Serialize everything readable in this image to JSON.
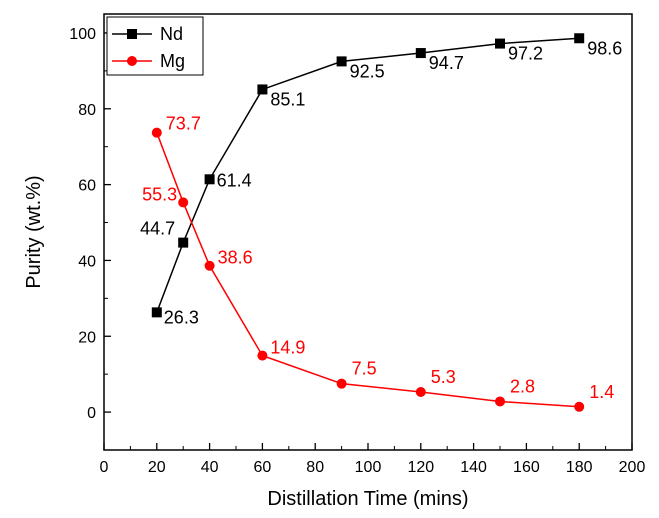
{
  "chart_data": {
    "type": "line",
    "xlabel": "Distillation Time (mins)",
    "ylabel": "Purity (wt.%)",
    "xlim": [
      0,
      200
    ],
    "ylim": [
      -10,
      105
    ],
    "xticks": [
      0,
      20,
      40,
      60,
      80,
      100,
      120,
      140,
      160,
      180,
      200
    ],
    "yticks": [
      0,
      20,
      40,
      60,
      80,
      100
    ],
    "x": [
      20,
      30,
      40,
      60,
      90,
      120,
      150,
      180
    ],
    "grid": false,
    "legend_position": "top-left",
    "series": [
      {
        "name": "Nd",
        "color": "#000000",
        "marker": "square",
        "values": [
          26.3,
          44.7,
          61.4,
          85.1,
          92.5,
          94.7,
          97.2,
          98.6
        ],
        "labels": [
          "26.3",
          "44.7",
          "61.4",
          "85.1",
          "92.5",
          "94.7",
          "97.2",
          "98.6"
        ]
      },
      {
        "name": "Mg",
        "color": "#ff0000",
        "marker": "circle",
        "values": [
          73.7,
          55.3,
          38.6,
          14.9,
          7.5,
          5.3,
          2.8,
          1.4
        ],
        "labels": [
          "73.7",
          "55.3",
          "38.6",
          "14.9",
          "7.5",
          "5.3",
          "2.8",
          "1.4"
        ]
      }
    ]
  }
}
